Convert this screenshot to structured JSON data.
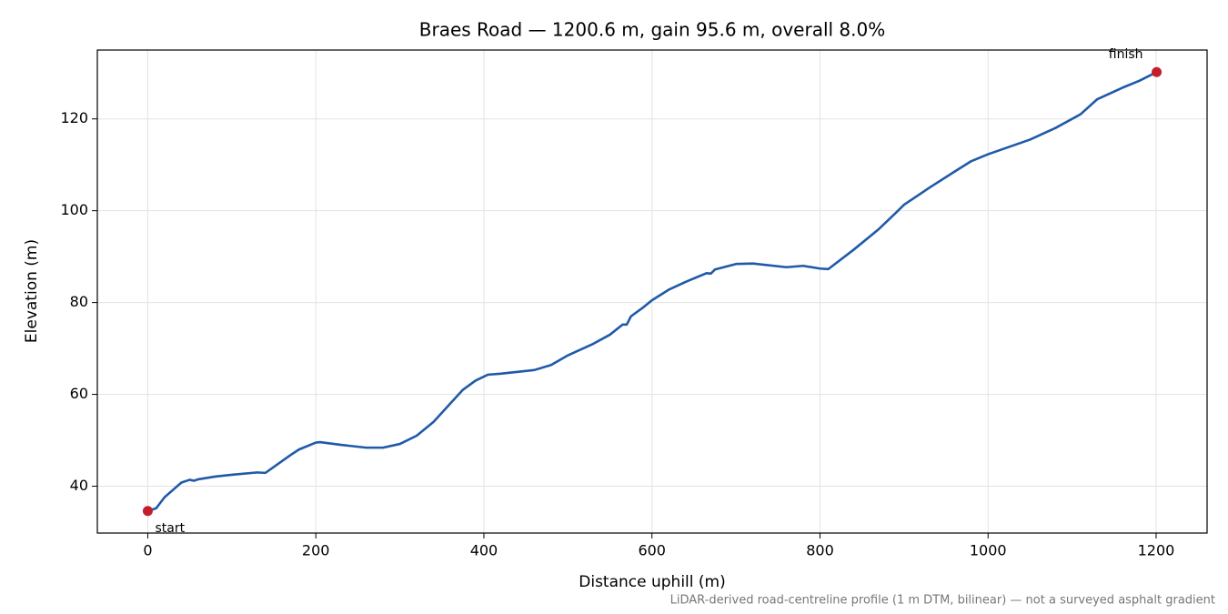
{
  "chart_data": {
    "type": "line",
    "title": "Braes Road — 1200.6 m, gain 95.6 m, overall 8.0%",
    "x_label": "Distance uphill (m)",
    "y_label": "Elevation (m)",
    "footnote": "LiDAR-derived road-centreline profile (1 m DTM, bilinear) — not a surveyed asphalt gradient",
    "x": [
      0,
      10,
      20,
      30,
      40,
      50,
      55,
      60,
      80,
      100,
      130,
      140,
      150,
      170,
      180,
      200,
      205,
      230,
      260,
      280,
      300,
      320,
      340,
      360,
      375,
      390,
      405,
      420,
      460,
      480,
      500,
      530,
      550,
      565,
      570,
      575,
      590,
      600,
      620,
      640,
      665,
      670,
      675,
      700,
      720,
      760,
      780,
      800,
      810,
      840,
      870,
      890,
      900,
      930,
      960,
      980,
      1000,
      1050,
      1080,
      1110,
      1130,
      1160,
      1180,
      1200.6
    ],
    "values": [
      34.6,
      35.2,
      37.6,
      39.2,
      40.8,
      41.4,
      41.2,
      41.5,
      42.1,
      42.5,
      43.0,
      42.9,
      44.2,
      46.8,
      48.0,
      49.5,
      49.6,
      49.0,
      48.4,
      48.4,
      49.2,
      51.0,
      54.0,
      58.0,
      61.0,
      63.0,
      64.3,
      64.5,
      65.3,
      66.4,
      68.5,
      71.0,
      73.0,
      75.2,
      75.2,
      77.0,
      79.0,
      80.5,
      82.8,
      84.5,
      86.4,
      86.3,
      87.2,
      88.4,
      88.5,
      87.7,
      88.0,
      87.4,
      87.3,
      91.5,
      96.0,
      99.5,
      101.3,
      105.0,
      108.5,
      110.8,
      112.3,
      115.5,
      118.0,
      121.0,
      124.3,
      126.8,
      128.3,
      130.2
    ],
    "color": "#1f5aa8",
    "annotations": [
      {
        "text": "start",
        "x": 0,
        "y": 34.6,
        "color": "#c41e2a"
      },
      {
        "text": "finish",
        "x": 1200.6,
        "y": 130.2,
        "color": "#c41e2a"
      }
    ],
    "xlim": [
      -60.03,
      1260.63
    ],
    "ylim": [
      29.8,
      135.0
    ],
    "xticks": [
      0,
      200,
      400,
      600,
      800,
      1000,
      1200
    ],
    "yticks": [
      40,
      60,
      80,
      100,
      120
    ],
    "grid": true
  }
}
